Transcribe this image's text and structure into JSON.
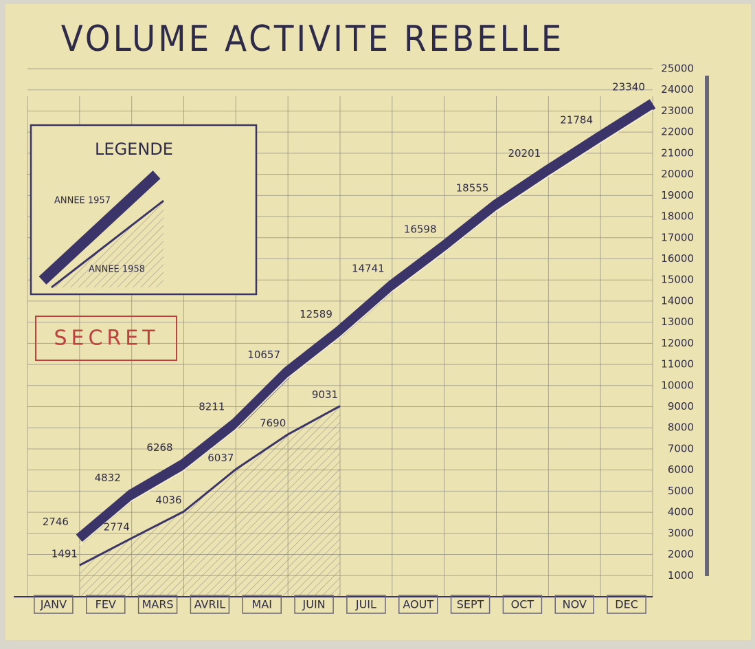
{
  "chart_data": {
    "type": "line",
    "title": "VOLUME ACTIVITE REBELLE",
    "legend_title": "LEGENDE",
    "annotation": "SECRET",
    "categories": [
      "JANV",
      "FEV",
      "MARS",
      "AVRIL",
      "MAI",
      "JUIN",
      "JUIL",
      "AOUT",
      "SEPT",
      "OCT",
      "NOV",
      "DEC"
    ],
    "series": [
      {
        "name": "ANNEE 1957",
        "color": "#3a3468",
        "values": [
          2746,
          4832,
          6268,
          8211,
          10657,
          12589,
          14741,
          16598,
          18555,
          20201,
          21784,
          23340
        ]
      },
      {
        "name": "ANNEE 1958",
        "color": "#3a3468",
        "values": [
          1491,
          2774,
          4036,
          6037,
          7690,
          9031,
          null,
          null,
          null,
          null,
          null,
          null
        ]
      }
    ],
    "ylim": [
      0,
      25000
    ],
    "yticks": [
      1000,
      2000,
      3000,
      4000,
      5000,
      6000,
      7000,
      8000,
      9000,
      10000,
      11000,
      12000,
      13000,
      14000,
      15000,
      16000,
      17000,
      18000,
      19000,
      20000,
      21000,
      22000,
      23000,
      24000,
      25000
    ],
    "grid": true
  }
}
